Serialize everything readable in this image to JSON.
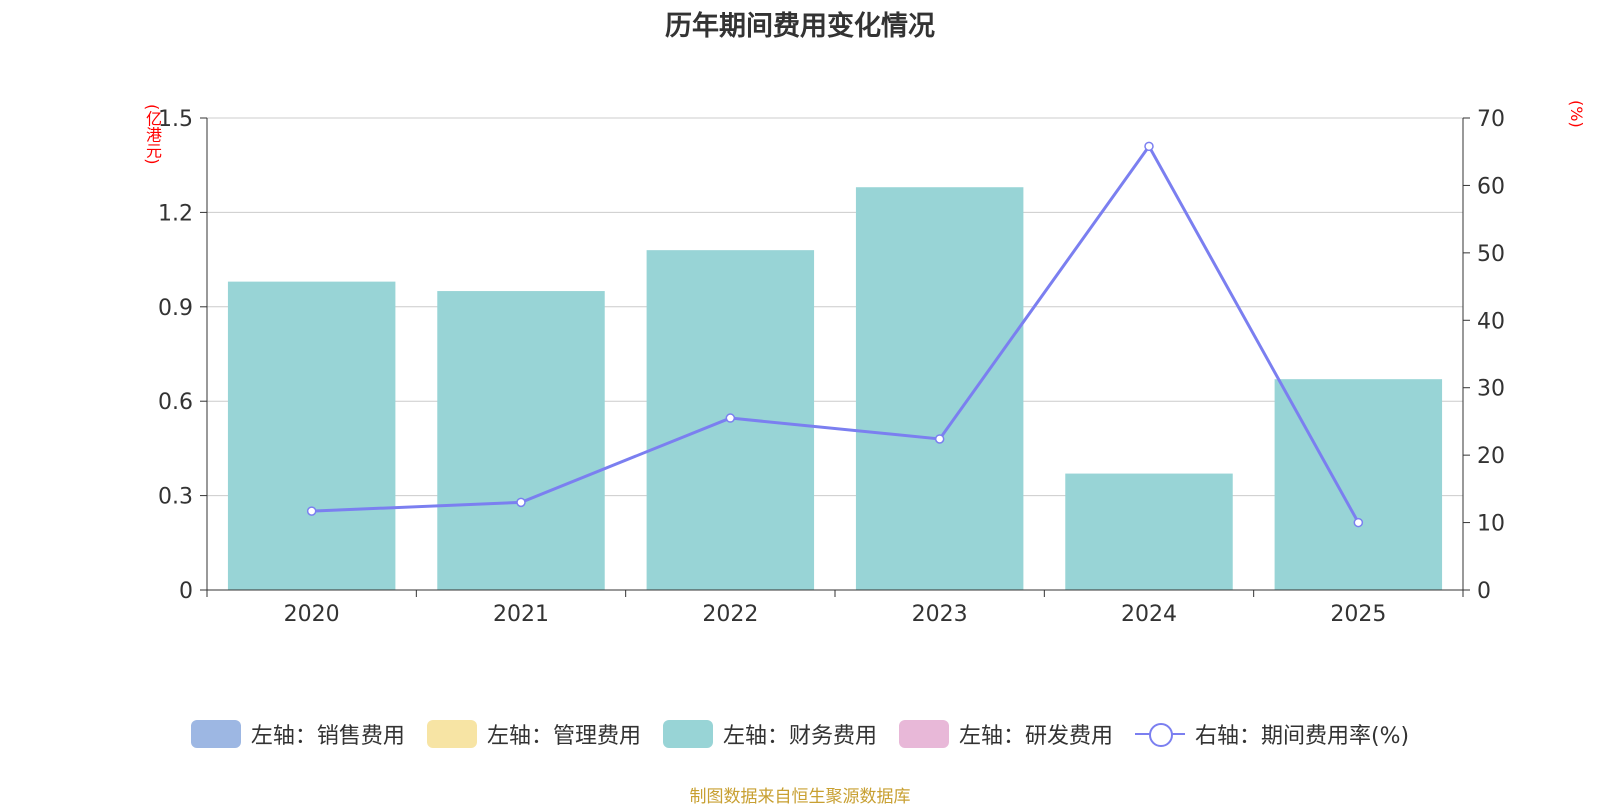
{
  "chart_data": {
    "type": "bar",
    "title": "历年期间费用变化情况",
    "categories": [
      "2020",
      "2021",
      "2022",
      "2023",
      "2024",
      "2025"
    ],
    "left_axis": {
      "unit_label": "(亿港元)",
      "ylim": [
        0,
        1.5
      ],
      "ticks": [
        "0",
        "0.3",
        "0.6",
        "0.9",
        "1.2",
        "1.5"
      ]
    },
    "right_axis": {
      "unit_label": "(%)",
      "ylim": [
        0,
        70
      ],
      "ticks": [
        "0",
        "10",
        "20",
        "30",
        "40",
        "50",
        "60",
        "70"
      ]
    },
    "series": [
      {
        "name": "左轴：财务费用",
        "axis": "left",
        "type": "bar",
        "color": "#98d4d6",
        "values": [
          0.98,
          0.95,
          1.08,
          1.28,
          0.37,
          0.67
        ]
      },
      {
        "name": "右轴：期间费用率(%)",
        "axis": "right",
        "type": "line",
        "color": "#7b7ff0",
        "values": [
          11.7,
          13.0,
          25.5,
          22.4,
          65.8,
          10.0
        ]
      }
    ],
    "grid": true
  },
  "legend": [
    {
      "label": "左轴：销售费用",
      "color": "#9db7e3",
      "kind": "bar"
    },
    {
      "label": "左轴：管理费用",
      "color": "#f7e4a4",
      "kind": "bar"
    },
    {
      "label": "左轴：财务费用",
      "color": "#98d4d6",
      "kind": "bar"
    },
    {
      "label": "左轴：研发费用",
      "color": "#e8b8d8",
      "kind": "bar"
    },
    {
      "label": "右轴：期间费用率(%)",
      "color": "#7b7ff0",
      "kind": "line"
    }
  ],
  "source": "制图数据来自恒生聚源数据库"
}
